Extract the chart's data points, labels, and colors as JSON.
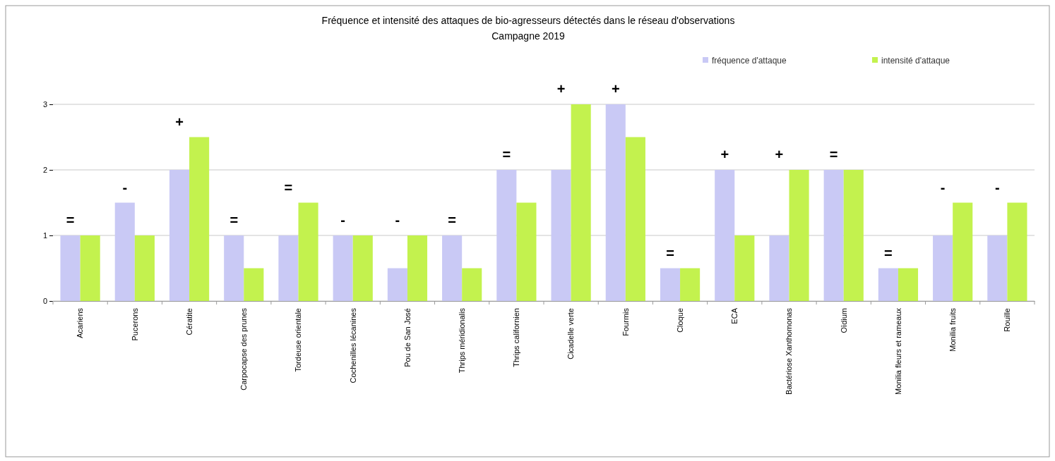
{
  "chart_data": {
    "type": "bar",
    "title": "Fréquence et intensité des attaques de bio-agresseurs détectés dans le réseau d'observations",
    "subtitle": "Campagne 2019",
    "categories": [
      "Acariens",
      "Pucerons",
      "Cératite",
      "Carpocapse des prunes",
      "Tordeuse orientale",
      "Cochenilles lécanines",
      "Pou de San José",
      "Thrips méridionalis",
      "Thrips californien",
      "Cicadelle verte",
      "Fourmis",
      "Cloque",
      "ECA",
      "Bactériose Xanthomonas",
      "Oïdium",
      "Monilia fleurs et rameaux",
      "Monilia fruits",
      "Rouille"
    ],
    "series": [
      {
        "name": "fréquence d'attaque",
        "color": "#c9c9f5",
        "values": [
          1,
          1.5,
          2,
          1,
          1,
          1,
          0.5,
          1,
          2,
          2,
          3,
          0.5,
          2,
          1,
          2,
          0.5,
          1,
          1
        ]
      },
      {
        "name": "intensité d'attaque",
        "color": "#c3f24e",
        "values": [
          1,
          1,
          2.5,
          0.5,
          1.5,
          1,
          1,
          0.5,
          1.5,
          3,
          2.5,
          0.5,
          1,
          2,
          2,
          0.5,
          1.5,
          1.5
        ]
      }
    ],
    "ylim": [
      0,
      3
    ],
    "yticks": [
      0,
      1,
      2,
      3
    ],
    "grid": "y",
    "legend": "top right",
    "annotations": [
      "=",
      "-",
      "+",
      "=",
      "=",
      "-",
      "-",
      "=",
      "=",
      "+",
      "+",
      "=",
      "+",
      "+",
      "=",
      "=",
      "-",
      "-"
    ]
  }
}
